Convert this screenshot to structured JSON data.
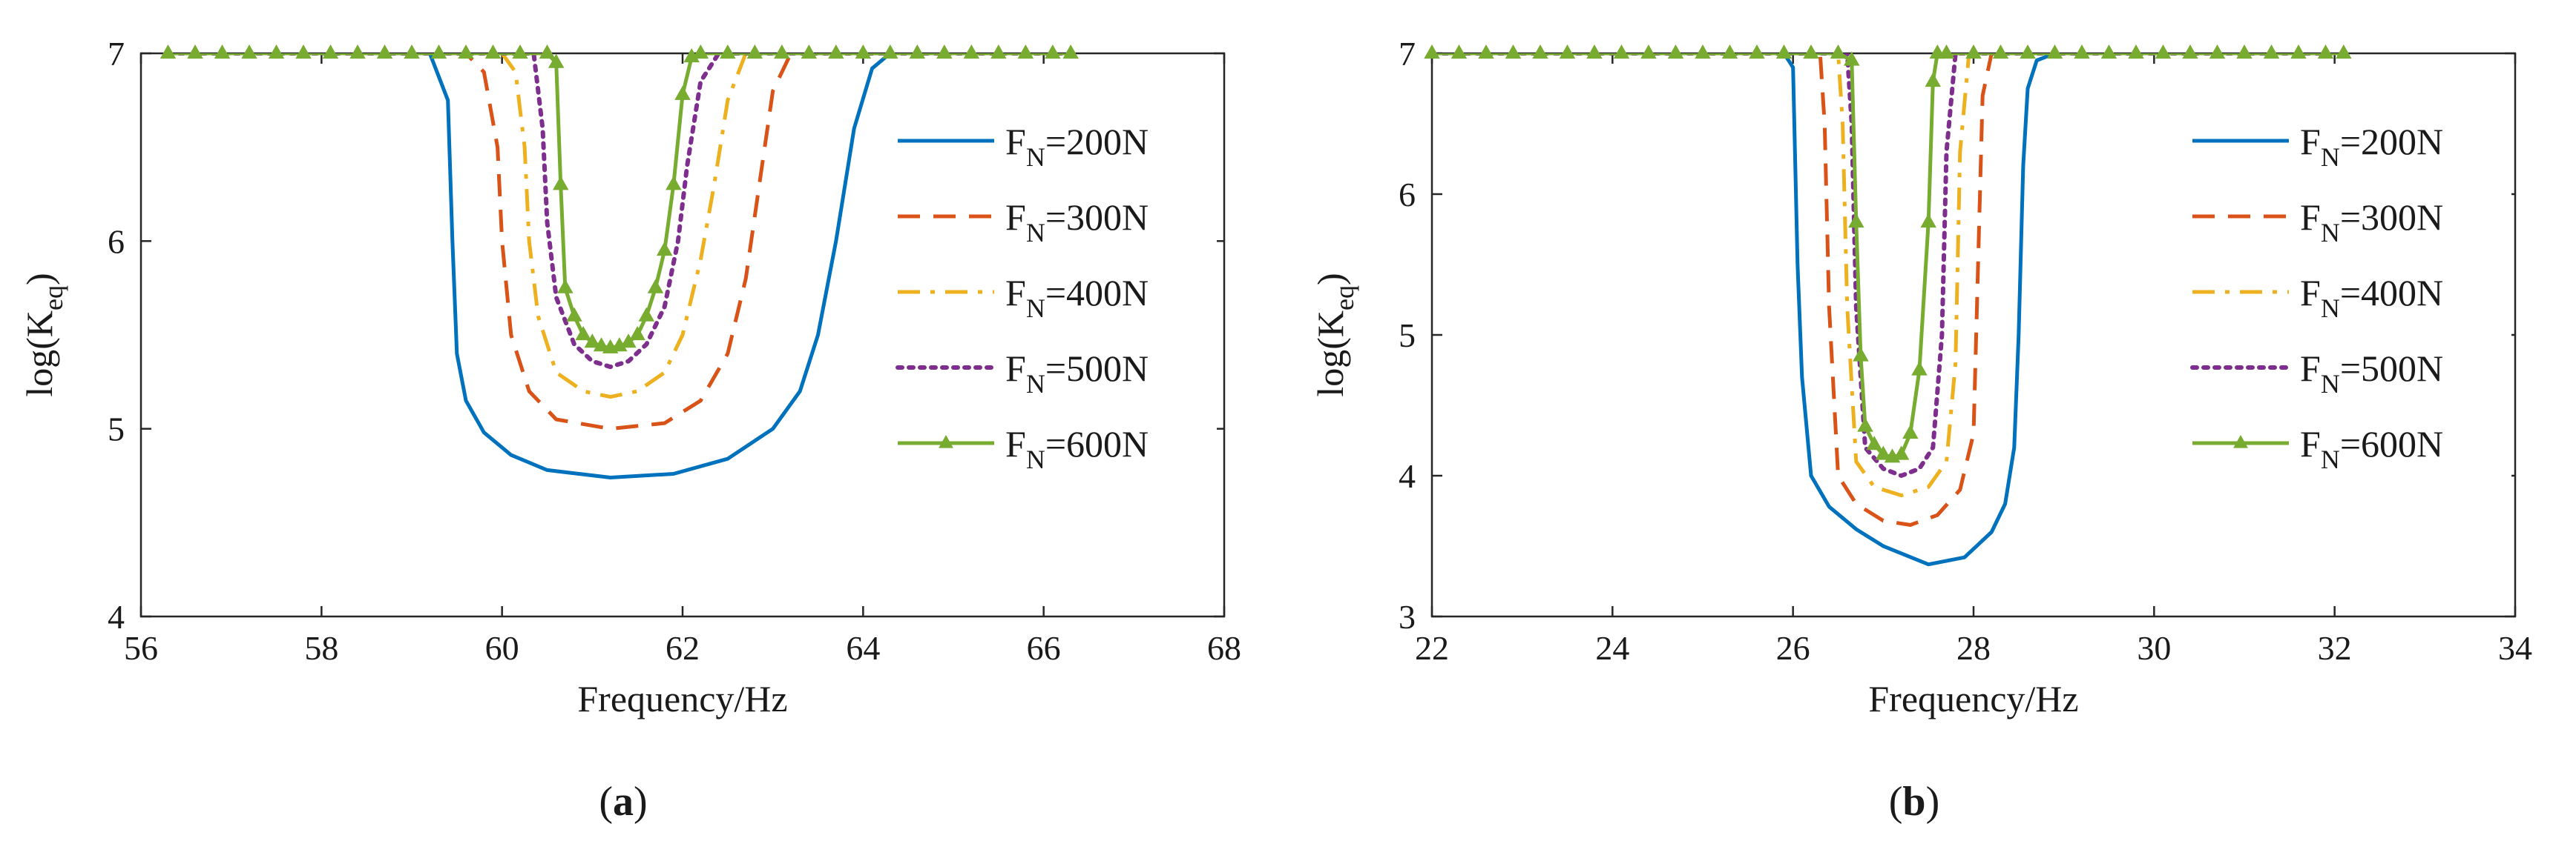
{
  "chart_data": [
    {
      "panel_label": "a",
      "type": "line",
      "xlabel": "Frequency/Hz",
      "ylabel": "log(K",
      "ylabel_sub": "eq",
      "ylabel_close": ")",
      "xlim": [
        56,
        68
      ],
      "ylim": [
        4,
        7
      ],
      "xticks": [
        56,
        58,
        60,
        62,
        64,
        66,
        68
      ],
      "yticks": [
        4,
        5,
        6,
        7
      ],
      "grid": false,
      "legend_position": "right",
      "series": [
        {
          "name": "F",
          "name_sub": "N",
          "name_suffix": "=200N",
          "color": "#0072BD",
          "dash": "solid",
          "marker": "none",
          "x": [
            56.3,
            58.0,
            59.2,
            59.4,
            59.45,
            59.5,
            59.6,
            59.8,
            60.1,
            60.5,
            61.2,
            61.9,
            62.5,
            63.0,
            63.3,
            63.5,
            63.7,
            63.9,
            64.1,
            64.3,
            66.3
          ],
          "y": [
            7,
            7,
            7,
            6.75,
            6.0,
            5.4,
            5.15,
            4.98,
            4.86,
            4.78,
            4.74,
            4.76,
            4.84,
            5.0,
            5.2,
            5.5,
            6.0,
            6.6,
            6.92,
            7,
            7
          ]
        },
        {
          "name": "F",
          "name_sub": "N",
          "name_suffix": "=300N",
          "color": "#D95319",
          "dash": "dashed",
          "marker": "none",
          "x": [
            56.3,
            59.6,
            59.8,
            59.95,
            60.0,
            60.1,
            60.3,
            60.6,
            61.2,
            61.8,
            62.2,
            62.5,
            62.7,
            62.85,
            63.0,
            63.2,
            66.3
          ],
          "y": [
            7,
            7,
            6.9,
            6.5,
            6.0,
            5.5,
            5.2,
            5.05,
            5.0,
            5.03,
            5.15,
            5.4,
            5.8,
            6.3,
            6.8,
            7,
            7
          ]
        },
        {
          "name": "F",
          "name_sub": "N",
          "name_suffix": "=400N",
          "color": "#EDB120",
          "dash": "dashdot",
          "marker": "none",
          "x": [
            56.3,
            60.0,
            60.15,
            60.25,
            60.3,
            60.4,
            60.6,
            60.9,
            61.2,
            61.5,
            61.8,
            62.0,
            62.2,
            62.35,
            62.5,
            62.7,
            66.3
          ],
          "y": [
            7,
            7,
            6.9,
            6.5,
            6.0,
            5.6,
            5.3,
            5.2,
            5.17,
            5.2,
            5.3,
            5.5,
            5.9,
            6.3,
            6.75,
            7,
            7
          ]
        },
        {
          "name": "F",
          "name_sub": "N",
          "name_suffix": "=500N",
          "color": "#7E2F8E",
          "dash": "dotted",
          "marker": "none",
          "x": [
            56.3,
            60.35,
            60.45,
            60.5,
            60.6,
            60.8,
            61.0,
            61.2,
            61.4,
            61.6,
            61.8,
            61.95,
            62.05,
            62.2,
            62.4,
            66.3
          ],
          "y": [
            7,
            7,
            6.6,
            6.1,
            5.7,
            5.45,
            5.36,
            5.33,
            5.36,
            5.45,
            5.65,
            6.0,
            6.4,
            6.85,
            7,
            7
          ]
        },
        {
          "name": "F",
          "name_sub": "N",
          "name_suffix": "=600N",
          "color": "#77AC30",
          "dash": "solid",
          "marker": "triangle",
          "x": [
            56.3,
            56.6,
            56.9,
            57.2,
            57.5,
            57.8,
            58.1,
            58.4,
            58.7,
            59.0,
            59.3,
            59.6,
            59.9,
            60.2,
            60.5,
            60.6,
            60.65,
            60.7,
            60.8,
            60.9,
            61.0,
            61.1,
            61.2,
            61.3,
            61.4,
            61.5,
            61.6,
            61.7,
            61.8,
            61.9,
            62.0,
            62.1,
            62.2,
            62.5,
            62.8,
            63.1,
            63.4,
            63.7,
            64.0,
            64.3,
            64.6,
            64.9,
            65.2,
            65.5,
            65.8,
            66.1,
            66.3
          ],
          "y": [
            7,
            7,
            7,
            7,
            7,
            7,
            7,
            7,
            7,
            7,
            7,
            7,
            7,
            7,
            7,
            6.95,
            6.3,
            5.75,
            5.6,
            5.5,
            5.46,
            5.44,
            5.43,
            5.44,
            5.46,
            5.5,
            5.6,
            5.75,
            5.95,
            6.3,
            6.78,
            6.98,
            7,
            7,
            7,
            7,
            7,
            7,
            7,
            7,
            7,
            7,
            7,
            7,
            7,
            7,
            7
          ]
        }
      ]
    },
    {
      "panel_label": "b",
      "type": "line",
      "xlabel": "Frequency/Hz",
      "ylabel": "log(K",
      "ylabel_sub": "eq",
      "ylabel_close": ")",
      "xlim": [
        22,
        34
      ],
      "ylim": [
        3,
        7
      ],
      "xticks": [
        22,
        24,
        26,
        28,
        30,
        32,
        34
      ],
      "yticks": [
        3,
        4,
        5,
        6,
        7
      ],
      "grid": false,
      "legend_position": "right",
      "series": [
        {
          "name": "F",
          "name_sub": "N",
          "name_suffix": "=200N",
          "color": "#0072BD",
          "dash": "solid",
          "marker": "none",
          "x": [
            22.0,
            25.9,
            26.0,
            26.05,
            26.1,
            26.2,
            26.4,
            26.7,
            27.0,
            27.5,
            27.9,
            28.2,
            28.35,
            28.45,
            28.5,
            28.55,
            28.6,
            28.7,
            28.9,
            32.1
          ],
          "y": [
            7,
            7,
            6.9,
            5.5,
            4.7,
            4.0,
            3.78,
            3.62,
            3.5,
            3.37,
            3.42,
            3.6,
            3.8,
            4.2,
            5.0,
            6.2,
            6.75,
            6.95,
            7,
            7
          ]
        },
        {
          "name": "F",
          "name_sub": "N",
          "name_suffix": "=300N",
          "color": "#D95319",
          "dash": "dashed",
          "marker": "none",
          "x": [
            22.0,
            26.3,
            26.35,
            26.4,
            26.5,
            26.7,
            27.0,
            27.3,
            27.6,
            27.85,
            28.0,
            28.05,
            28.1,
            28.2,
            32.1
          ],
          "y": [
            7,
            7,
            6.5,
            5.2,
            4.0,
            3.8,
            3.68,
            3.65,
            3.72,
            3.9,
            4.3,
            5.5,
            6.7,
            7,
            7
          ]
        },
        {
          "name": "F",
          "name_sub": "N",
          "name_suffix": "=400N",
          "color": "#EDB120",
          "dash": "dashdot",
          "marker": "none",
          "x": [
            22.0,
            26.5,
            26.55,
            26.6,
            26.7,
            26.9,
            27.2,
            27.5,
            27.7,
            27.8,
            27.85,
            27.95,
            32.1
          ],
          "y": [
            7,
            7,
            6.5,
            5.2,
            4.1,
            3.92,
            3.86,
            3.92,
            4.1,
            4.8,
            6.3,
            7,
            7
          ]
        },
        {
          "name": "F",
          "name_sub": "N",
          "name_suffix": "=500N",
          "color": "#7E2F8E",
          "dash": "dotted",
          "marker": "none",
          "x": [
            22.0,
            26.6,
            26.65,
            26.7,
            26.8,
            27.0,
            27.2,
            27.4,
            27.55,
            27.65,
            27.7,
            27.8,
            32.1
          ],
          "y": [
            7,
            7,
            6.5,
            5.2,
            4.2,
            4.05,
            4.0,
            4.05,
            4.2,
            5.0,
            6.3,
            7,
            7
          ]
        },
        {
          "name": "F",
          "name_sub": "N",
          "name_suffix": "=600N",
          "color": "#77AC30",
          "dash": "solid",
          "marker": "triangle",
          "x": [
            22.0,
            22.3,
            22.6,
            22.9,
            23.2,
            23.5,
            23.8,
            24.1,
            24.4,
            24.7,
            25.0,
            25.3,
            25.6,
            25.9,
            26.2,
            26.5,
            26.65,
            26.7,
            26.75,
            26.8,
            26.9,
            27.0,
            27.1,
            27.2,
            27.3,
            27.4,
            27.5,
            27.55,
            27.6,
            27.7,
            28.0,
            28.3,
            28.6,
            28.9,
            29.2,
            29.5,
            29.8,
            30.1,
            30.4,
            30.7,
            31.0,
            31.3,
            31.6,
            31.9,
            32.1
          ],
          "y": [
            7,
            7,
            7,
            7,
            7,
            7,
            7,
            7,
            7,
            7,
            7,
            7,
            7,
            7,
            7,
            7,
            6.95,
            5.8,
            4.85,
            4.35,
            4.22,
            4.15,
            4.13,
            4.15,
            4.3,
            4.75,
            5.8,
            6.8,
            7,
            7,
            7,
            7,
            7,
            7,
            7,
            7,
            7,
            7,
            7,
            7,
            7,
            7,
            7,
            7,
            7
          ]
        }
      ]
    }
  ]
}
